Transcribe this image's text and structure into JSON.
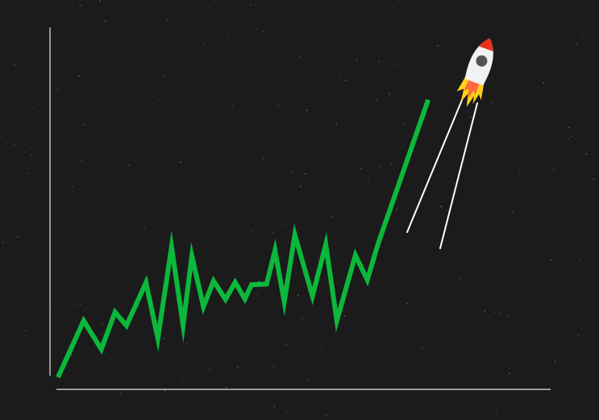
{
  "colors": {
    "background": "#1b1b1c",
    "line": "#0bb83b",
    "axis": "#e8e8e8",
    "stars": "#8a8a8a",
    "rocket_body": "#f2f2f2",
    "rocket_nose": "#e8321e",
    "rocket_window": "#555555",
    "flame_outer": "#ffd21a",
    "flame_inner": "#ff6a3d",
    "trail": "#ffffff"
  },
  "icons": {
    "rocket": "rocket-icon",
    "flame": "flame-icon"
  },
  "chart_data": {
    "type": "line",
    "title": "",
    "xlabel": "",
    "ylabel": "",
    "grid": false,
    "legend": "none",
    "axes": {
      "ticks": false,
      "tick_labels": false
    },
    "xlim": [
      0,
      100
    ],
    "ylim": [
      0,
      100
    ],
    "series": [
      {
        "name": "",
        "x": [
          0,
          5.8,
          9.8,
          12.9,
          15.5,
          19.9,
          22.6,
          25.7,
          28.3,
          30.3,
          32.9,
          35.2,
          37.9,
          40.1,
          42.3,
          43.8,
          47.2,
          49.1,
          51.2,
          53.6,
          57.6,
          60.6,
          63.1,
          67.3,
          70.0,
          72.4,
          83.8
        ],
        "y": [
          0,
          16.3,
          8.1,
          18.8,
          14.9,
          27.3,
          11.2,
          37.6,
          15.0,
          35.0,
          20.4,
          27.8,
          22.5,
          27.4,
          22.6,
          26.7,
          26.9,
          36.6,
          21.8,
          41.1,
          23.4,
          38.3,
          16.3,
          35.2,
          28.1,
          38.4,
          80.1
        ]
      }
    ]
  }
}
